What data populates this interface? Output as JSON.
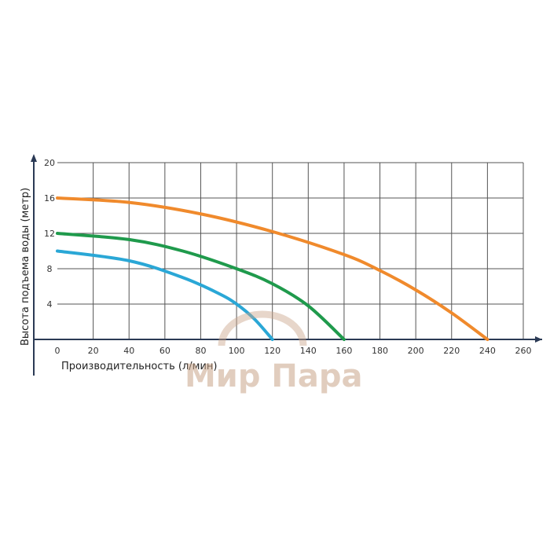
{
  "chart_data": {
    "type": "line",
    "xlabel": "Производительность (л/мин)",
    "ylabel": "Высота подъема воды (метр)",
    "xlim": [
      0,
      260
    ],
    "ylim": [
      0,
      20
    ],
    "x_ticks": [
      0,
      20,
      40,
      60,
      80,
      100,
      120,
      140,
      160,
      180,
      200,
      220,
      240,
      260
    ],
    "y_ticks": [
      4,
      8,
      12,
      16,
      20
    ],
    "grid": true,
    "legend": "none",
    "series": [
      {
        "color": "#f08a2c",
        "points": [
          [
            0,
            16
          ],
          [
            40,
            15.5
          ],
          [
            80,
            14.2
          ],
          [
            120,
            12.2
          ],
          [
            160,
            9.6
          ],
          [
            180,
            7.8
          ],
          [
            200,
            5.6
          ],
          [
            220,
            3
          ],
          [
            240,
            0
          ]
        ]
      },
      {
        "color": "#1f9a4c",
        "points": [
          [
            0,
            12
          ],
          [
            40,
            11.3
          ],
          [
            70,
            10
          ],
          [
            100,
            8
          ],
          [
            120,
            6.3
          ],
          [
            140,
            3.8
          ],
          [
            160,
            0
          ]
        ]
      },
      {
        "color": "#2aa7d6",
        "points": [
          [
            0,
            10
          ],
          [
            40,
            8.9
          ],
          [
            70,
            7
          ],
          [
            90,
            5.2
          ],
          [
            100,
            4
          ],
          [
            110,
            2.3
          ],
          [
            120,
            0
          ]
        ]
      }
    ]
  },
  "watermark": "Мир Пара"
}
